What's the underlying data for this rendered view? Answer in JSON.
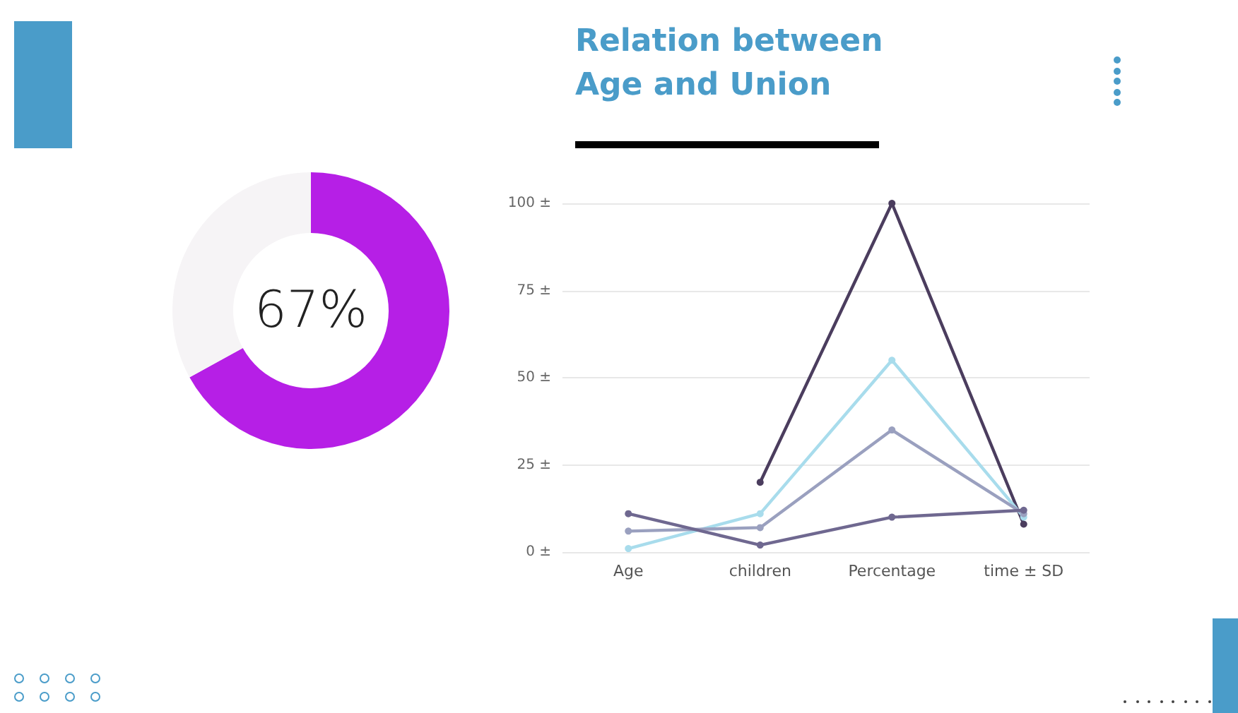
{
  "chart_data": [
    {
      "type": "donut",
      "categories": [
        null,
        null
      ],
      "values": [
        67,
        33
      ],
      "colors": [
        "#b61fe6",
        "#f6f4f6"
      ],
      "annotations": [
        "67%"
      ]
    },
    {
      "type": "line",
      "title": "Relation between Age and Union",
      "categories": [
        "Age",
        "children",
        "Percentage",
        "time ± SD"
      ],
      "series": [
        {
          "color": "#4b3d5e",
          "values": [
            null,
            20,
            100,
            8
          ]
        },
        {
          "color": "#a8dcec",
          "values": [
            1,
            11,
            55,
            10
          ]
        },
        {
          "color": "#9aa0bf",
          "values": [
            6,
            7,
            35,
            11
          ]
        },
        {
          "color": "#6f6890",
          "values": [
            11,
            2,
            10,
            12
          ]
        }
      ],
      "ylim": [
        0,
        100
      ],
      "yticks": [
        {
          "value": 0,
          "label": "0 ±"
        },
        {
          "value": 25,
          "label": "25 ±"
        },
        {
          "value": 50,
          "label": "50 ±"
        },
        {
          "value": 75,
          "label": "75 ±"
        },
        {
          "value": 100,
          "label": "100 ±"
        }
      ],
      "grid": "y",
      "marker": "circle",
      "line_style": "solid"
    }
  ]
}
